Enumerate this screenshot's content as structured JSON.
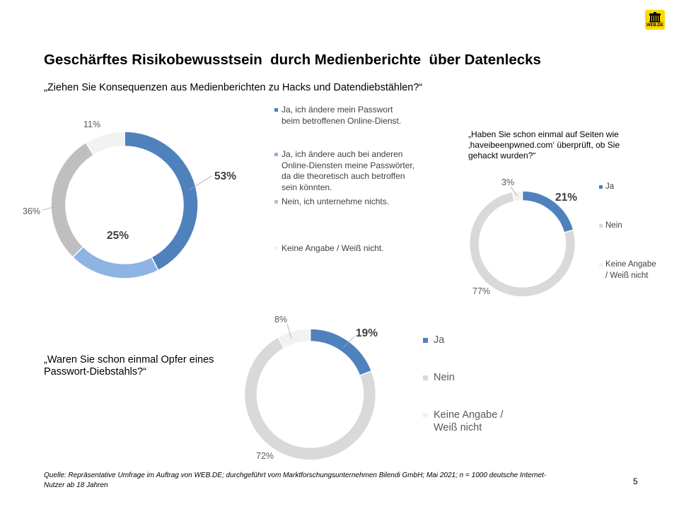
{
  "logo": {
    "text": "WEB.DE",
    "icon": "brandenburg-gate-icon",
    "color": "#FFD800"
  },
  "title": "Geschärftes Risikobewusstsein  durch Medienberichte  über Datenlecks",
  "chart_data": [
    {
      "type": "pie",
      "donut": true,
      "title": "„Ziehen Sie Konsequenzen aus Medienberichten zu Hacks und Datendiebstählen?“",
      "categories": [
        "Ja, ich ändere mein Passwort\nbeim betroffenen Online-Dienst.",
        "Ja, ich ändere auch bei anderen\nOnline-Diensten meine Passwörter,\nda die theoretisch auch betroffen\nsein könnten.",
        "Nein, ich unternehme nichts.",
        "Keine Angabe / Weiß nicht."
      ],
      "values": [
        53,
        25,
        36,
        11
      ],
      "data_labels": [
        "53%",
        "25%",
        "36%",
        "11%"
      ],
      "colors": [
        "#4F81BD",
        "#8DB4E2",
        "#BFBFBF",
        "#F2F2F2"
      ],
      "legend_position": "right"
    },
    {
      "type": "pie",
      "donut": true,
      "title": "„Haben Sie schon einmal auf Seiten wie\n‚haveibeenpwned.com‘ überprüft, ob Sie\ngehackt wurden?“",
      "categories": [
        "Ja",
        "Nein",
        "Keine Angabe\n/ Weiß nicht"
      ],
      "values": [
        21,
        77,
        3
      ],
      "data_labels": [
        "21%",
        "77%",
        "3%"
      ],
      "colors": [
        "#4F81BD",
        "#D9D9D9",
        "#F2F2F2"
      ],
      "legend_position": "right"
    },
    {
      "type": "pie",
      "donut": true,
      "title": "„Waren Sie schon einmal Opfer eines\nPasswort-Diebstahls?“",
      "categories": [
        "Ja",
        "Nein",
        "Keine Angabe /\nWeiß nicht"
      ],
      "values": [
        19,
        72,
        8
      ],
      "data_labels": [
        "19%",
        "72%",
        "8%"
      ],
      "colors": [
        "#4F81BD",
        "#D9D9D9",
        "#F2F2F2"
      ],
      "legend_position": "right"
    }
  ],
  "source": "Quelle: Repräsentative Umfrage im Auftrag von WEB.DE; durchgeführt vom Marktforschungsunternehmen Bilendi GmbH; Mai 2021; n = 1000 deutsche Internet-\nNutzer ab 18 Jahren",
  "page_number": "5"
}
